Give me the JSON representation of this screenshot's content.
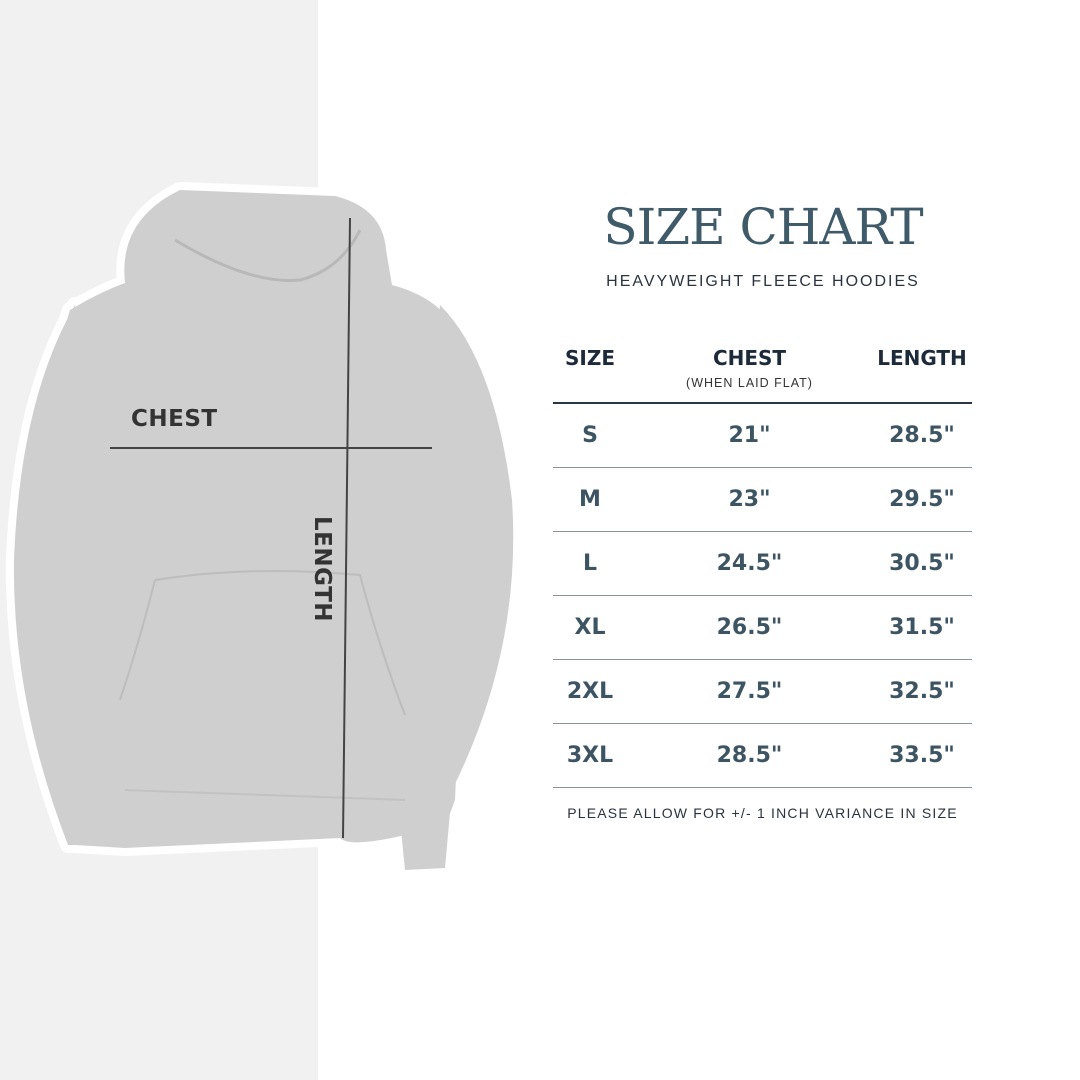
{
  "title": "SIZE CHART",
  "subtitle": "HEAVYWEIGHT FLEECE HOODIES",
  "image_labels": {
    "chest": "CHEST",
    "length": "LENGTH"
  },
  "table": {
    "headers": [
      {
        "label": "SIZE",
        "sub": ""
      },
      {
        "label": "CHEST",
        "sub": "(WHEN LAID FLAT)"
      },
      {
        "label": "LENGTH",
        "sub": ""
      }
    ],
    "rows": [
      [
        "S",
        "21\"",
        "28.5\""
      ],
      [
        "M",
        "23\"",
        "29.5\""
      ],
      [
        "L",
        "24.5\"",
        "30.5\""
      ],
      [
        "XL",
        "26.5\"",
        "31.5\""
      ],
      [
        "2XL",
        "27.5\"",
        "32.5\""
      ],
      [
        "3XL",
        "28.5\"",
        "33.5\""
      ]
    ]
  },
  "note": "PLEASE ALLOW FOR +/- 1 INCH VARIANCE IN SIZE",
  "colors": {
    "title": "#3f5a68",
    "header": "#1c2a3a",
    "values": "#3d5563",
    "hoodie": "#cfcfcf",
    "panel": "#f1f1f1"
  }
}
